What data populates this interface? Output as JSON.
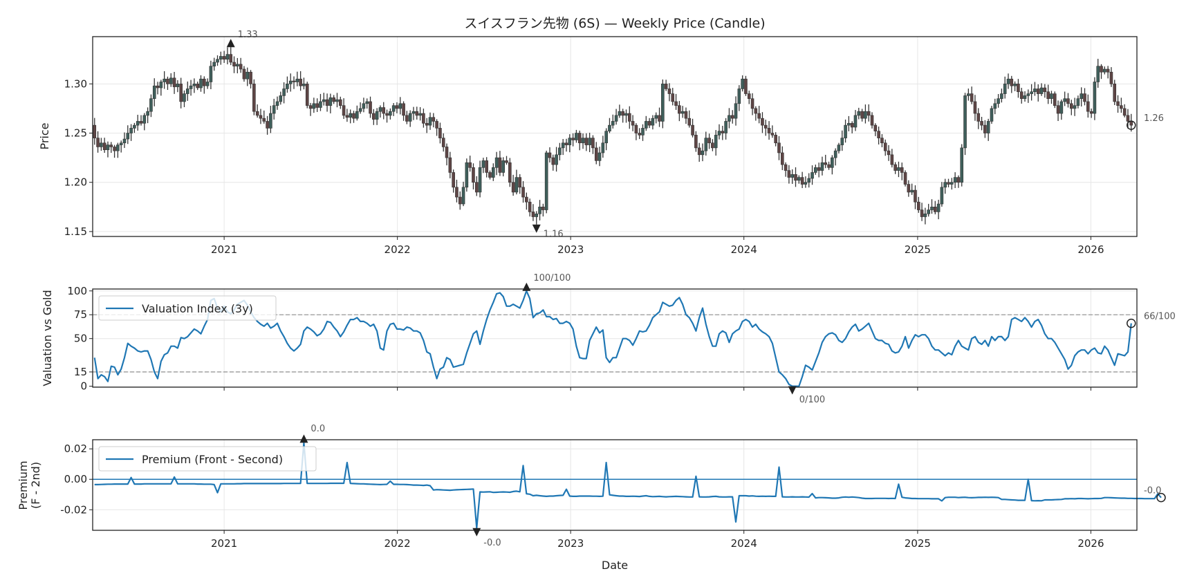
{
  "title": "スイスフラン先物 (6S) — Weekly Price (Candle)",
  "colors": {
    "up": "#3f5f5b",
    "down": "#5e4545",
    "wick": "#333333",
    "line": "#1f77b4",
    "marker": "#222222",
    "ref": "#999999"
  },
  "x_axis": {
    "label": "Date",
    "xlim": [
      "2020-03-30",
      "2026-04-08"
    ],
    "ticks": [
      "2021-01-01",
      "2022-01-01",
      "2023-01-01",
      "2024-01-01",
      "2025-01-01",
      "2026-01-01"
    ],
    "tick_labels": [
      "2021",
      "2022",
      "2023",
      "2024",
      "2025",
      "2026"
    ],
    "dates": {
      "start": "2020-04-03",
      "step_days": 7
    }
  },
  "chart_data": [
    {
      "type": "candlestick",
      "ylabel": "Price",
      "ylim": [
        1.145,
        1.348
      ],
      "yticks": [
        1.15,
        1.2,
        1.25,
        1.3
      ],
      "ytick_labels": [
        "1.15",
        "1.20",
        "1.25",
        "1.30"
      ],
      "grid": true,
      "close": [
        1.245,
        1.236,
        1.24,
        1.233,
        1.238,
        1.236,
        1.232,
        1.238,
        1.24,
        1.244,
        1.25,
        1.255,
        1.258,
        1.262,
        1.26,
        1.268,
        1.272,
        1.285,
        1.298,
        1.296,
        1.302,
        1.305,
        1.3,
        1.306,
        1.297,
        1.3,
        1.282,
        1.29,
        1.295,
        1.298,
        1.3,
        1.296,
        1.305,
        1.298,
        1.302,
        1.318,
        1.322,
        1.325,
        1.328,
        1.325,
        1.33,
        1.322,
        1.318,
        1.32,
        1.315,
        1.305,
        1.312,
        1.3,
        1.272,
        1.268,
        1.265,
        1.262,
        1.255,
        1.27,
        1.278,
        1.282,
        1.288,
        1.295,
        1.3,
        1.303,
        1.302,
        1.305,
        1.298,
        1.3,
        1.278,
        1.275,
        1.28,
        1.276,
        1.282,
        1.284,
        1.278,
        1.286,
        1.282,
        1.284,
        1.278,
        1.268,
        1.266,
        1.27,
        1.265,
        1.272,
        1.275,
        1.28,
        1.282,
        1.27,
        1.264,
        1.272,
        1.276,
        1.27,
        1.268,
        1.272,
        1.278,
        1.275,
        1.28,
        1.268,
        1.262,
        1.27,
        1.272,
        1.268,
        1.27,
        1.26,
        1.258,
        1.266,
        1.262,
        1.255,
        1.245,
        1.236,
        1.225,
        1.21,
        1.195,
        1.185,
        1.178,
        1.195,
        1.22,
        1.215,
        1.2,
        1.19,
        1.215,
        1.222,
        1.21,
        1.205,
        1.215,
        1.225,
        1.21,
        1.222,
        1.22,
        1.2,
        1.19,
        1.205,
        1.195,
        1.185,
        1.18,
        1.17,
        1.165,
        1.168,
        1.175,
        1.172,
        1.23,
        1.225,
        1.218,
        1.228,
        1.235,
        1.24,
        1.238,
        1.245,
        1.243,
        1.25,
        1.24,
        1.245,
        1.238,
        1.245,
        1.235,
        1.222,
        1.23,
        1.24,
        1.252,
        1.258,
        1.262,
        1.268,
        1.272,
        1.268,
        1.27,
        1.262,
        1.258,
        1.25,
        1.248,
        1.255,
        1.262,
        1.258,
        1.265,
        1.268,
        1.262,
        1.3,
        1.295,
        1.29,
        1.282,
        1.278,
        1.27,
        1.272,
        1.265,
        1.258,
        1.248,
        1.235,
        1.228,
        1.232,
        1.245,
        1.24,
        1.235,
        1.248,
        1.252,
        1.25,
        1.262,
        1.268,
        1.265,
        1.28,
        1.295,
        1.305,
        1.29,
        1.285,
        1.275,
        1.27,
        1.265,
        1.258,
        1.255,
        1.25,
        1.248,
        1.24,
        1.23,
        1.218,
        1.212,
        1.205,
        1.208,
        1.202,
        1.205,
        1.198,
        1.2,
        1.204,
        1.21,
        1.215,
        1.212,
        1.22,
        1.218,
        1.215,
        1.225,
        1.232,
        1.238,
        1.245,
        1.258,
        1.26,
        1.256,
        1.268,
        1.272,
        1.265,
        1.272,
        1.268,
        1.258,
        1.252,
        1.245,
        1.24,
        1.232,
        1.228,
        1.218,
        1.212,
        1.215,
        1.21,
        1.198,
        1.19,
        1.192,
        1.18,
        1.172,
        1.165,
        1.168,
        1.172,
        1.175,
        1.17,
        1.178,
        1.195,
        1.2,
        1.198,
        1.2,
        1.205,
        1.2,
        1.235,
        1.288,
        1.29,
        1.282,
        1.27,
        1.262,
        1.258,
        1.25,
        1.262,
        1.275,
        1.28,
        1.285,
        1.29,
        1.3,
        1.305,
        1.298,
        1.3,
        1.292,
        1.285,
        1.288,
        1.29,
        1.292,
        1.295,
        1.29,
        1.296,
        1.292,
        1.285,
        1.29,
        1.278,
        1.27,
        1.282,
        1.285,
        1.28,
        1.275,
        1.278,
        1.285,
        1.29,
        1.282,
        1.272,
        1.27,
        1.302,
        1.318,
        1.312,
        1.315,
        1.312,
        1.3,
        1.282,
        1.278,
        1.275,
        1.268,
        1.262,
        1.258
      ],
      "annotations": {
        "max_label": "1.33",
        "min_label": "1.16",
        "last_label": "1.26"
      }
    },
    {
      "type": "line",
      "ylabel": "Valuation vs Gold",
      "ylim": [
        -1,
        102
      ],
      "yticks": [
        0,
        15,
        50,
        75,
        100
      ],
      "ytick_labels": [
        "0",
        "15",
        "50",
        "75",
        "100"
      ],
      "reference_lines": [
        75,
        15
      ],
      "grid": true,
      "legend": "upper-left",
      "series": [
        {
          "name": "Valuation Index (3y)",
          "values": [
            30,
            8,
            12,
            10,
            5,
            21,
            20,
            12,
            18,
            30,
            45,
            42,
            40,
            37,
            36,
            37,
            37,
            28,
            15,
            8,
            26,
            33,
            35,
            42,
            42,
            40,
            51,
            50,
            52,
            56,
            60,
            58,
            55,
            63,
            70,
            90,
            92,
            82,
            78,
            84,
            78,
            76,
            80,
            86,
            88,
            90,
            85,
            78,
            72,
            68,
            65,
            63,
            66,
            61,
            63,
            66,
            58,
            52,
            45,
            40,
            37,
            40,
            44,
            58,
            62,
            60,
            57,
            53,
            55,
            60,
            68,
            67,
            62,
            58,
            52,
            57,
            64,
            70,
            70,
            72,
            68,
            68,
            66,
            63,
            65,
            58,
            40,
            38,
            58,
            65,
            66,
            60,
            60,
            59,
            62,
            61,
            58,
            58,
            56,
            48,
            36,
            34,
            20,
            8,
            18,
            20,
            30,
            28,
            20,
            21,
            22,
            23,
            35,
            45,
            55,
            58,
            44,
            58,
            70,
            80,
            88,
            97,
            98,
            94,
            84,
            84,
            86,
            84,
            82,
            90,
            100,
            92,
            72,
            76,
            77,
            80,
            73,
            73,
            70,
            71,
            66,
            66,
            68,
            66,
            60,
            42,
            30,
            29,
            29,
            48,
            55,
            62,
            56,
            59,
            30,
            25,
            30,
            30,
            40,
            50,
            50,
            48,
            43,
            50,
            58,
            57,
            58,
            64,
            72,
            75,
            78,
            88,
            86,
            84,
            85,
            90,
            93,
            86,
            75,
            72,
            66,
            58,
            72,
            82,
            65,
            52,
            42,
            42,
            55,
            58,
            56,
            46,
            55,
            58,
            60,
            68,
            70,
            68,
            62,
            65,
            60,
            57,
            55,
            52,
            45,
            30,
            15,
            12,
            8,
            2,
            0,
            0,
            0,
            10,
            22,
            20,
            17,
            26,
            35,
            46,
            52,
            55,
            56,
            54,
            48,
            46,
            50,
            57,
            62,
            65,
            58,
            60,
            63,
            66,
            58,
            50,
            48,
            48,
            45,
            44,
            37,
            35,
            36,
            42,
            52,
            40,
            48,
            54,
            52,
            54,
            54,
            50,
            42,
            38,
            38,
            35,
            32,
            35,
            33,
            42,
            48,
            42,
            40,
            38,
            50,
            52,
            46,
            44,
            48,
            42,
            52,
            48,
            52,
            52,
            48,
            52,
            70,
            72,
            70,
            68,
            72,
            68,
            62,
            68,
            70,
            64,
            55,
            50,
            50,
            46,
            40,
            34,
            28,
            18,
            22,
            32,
            36,
            38,
            38,
            34,
            38,
            40,
            35,
            34,
            42,
            38,
            30,
            22,
            34,
            33,
            32,
            36,
            66
          ]
        }
      ],
      "annotations": {
        "max_label": "100/100",
        "min_label": "0/100",
        "last_label": "66/100"
      }
    },
    {
      "type": "line",
      "ylabel": "Premium\n(F - 2nd)",
      "ylabel_lines": [
        "Premium",
        "(F - 2nd)"
      ],
      "ylim": [
        -0.0335,
        0.026
      ],
      "yticks": [
        -0.02,
        0.0,
        0.02
      ],
      "ytick_labels": [
        "-0.02",
        "0.00",
        "0.02"
      ],
      "reference_lines": [
        0
      ],
      "grid": true,
      "legend": "upper-left",
      "series": [
        {
          "name": "Premium (Front - Second)",
          "values": [
            -0.0035,
            -0.0035,
            -0.0034,
            -0.0033,
            -0.0032,
            -0.0032,
            -0.0031,
            -0.0031,
            -0.0031,
            -0.0031,
            -0.0031,
            0.0012,
            -0.0031,
            -0.0031,
            -0.0031,
            -0.003,
            -0.003,
            -0.003,
            -0.003,
            -0.003,
            -0.003,
            -0.003,
            -0.003,
            -0.003,
            0.0015,
            -0.003,
            -0.003,
            -0.003,
            -0.003,
            -0.003,
            -0.003,
            -0.0031,
            -0.0031,
            -0.0032,
            -0.0032,
            -0.0032,
            -0.0035,
            -0.0088,
            -0.003,
            -0.003,
            -0.003,
            -0.003,
            -0.003,
            -0.0029,
            -0.0029,
            -0.0028,
            -0.0028,
            -0.0028,
            -0.0028,
            -0.0028,
            -0.0028,
            -0.0028,
            -0.0028,
            -0.0028,
            -0.0028,
            -0.0028,
            -0.0028,
            -0.0027,
            -0.0027,
            -0.0027,
            -0.0027,
            -0.0027,
            -0.0027,
            0.024,
            -0.0027,
            -0.0027,
            -0.0027,
            -0.0027,
            -0.0027,
            -0.0027,
            -0.0027,
            -0.0026,
            -0.0026,
            -0.0026,
            -0.0026,
            -0.0026,
            0.011,
            -0.0027,
            -0.0028,
            -0.0029,
            -0.003,
            -0.003,
            -0.0031,
            -0.0032,
            -0.0033,
            -0.0034,
            -0.0035,
            -0.0034,
            -0.0033,
            -0.0012,
            -0.0033,
            -0.0033,
            -0.0034,
            -0.0034,
            -0.0035,
            -0.0036,
            -0.0038,
            -0.0038,
            -0.0039,
            -0.004,
            -0.0038,
            -0.0042,
            -0.007,
            -0.0068,
            -0.0069,
            -0.007,
            -0.0071,
            -0.0072,
            -0.007,
            -0.0069,
            -0.0068,
            -0.0067,
            -0.0066,
            -0.0065,
            -0.0064,
            -0.032,
            -0.0083,
            -0.0084,
            -0.0083,
            -0.0082,
            -0.0086,
            -0.0085,
            -0.0084,
            -0.0083,
            -0.0084,
            -0.0085,
            -0.008,
            -0.0078,
            -0.0082,
            0.009,
            -0.0095,
            -0.0098,
            -0.0108,
            -0.0105,
            -0.0108,
            -0.011,
            -0.0112,
            -0.011,
            -0.011,
            -0.0108,
            -0.0106,
            -0.0105,
            -0.0065,
            -0.011,
            -0.0112,
            -0.0112,
            -0.011,
            -0.011,
            -0.011,
            -0.011,
            -0.0111,
            -0.0111,
            -0.0112,
            -0.0111,
            0.011,
            -0.0102,
            -0.0105,
            -0.0108,
            -0.011,
            -0.011,
            -0.0112,
            -0.0112,
            -0.0111,
            -0.0112,
            -0.0113,
            -0.011,
            -0.0108,
            -0.0112,
            -0.0114,
            -0.0113,
            -0.0112,
            -0.0114,
            -0.0115,
            -0.0114,
            -0.0113,
            -0.0112,
            -0.0113,
            -0.0114,
            -0.0115,
            -0.0116,
            -0.0116,
            0.002,
            -0.0115,
            -0.0116,
            -0.0116,
            -0.0115,
            -0.0113,
            -0.0112,
            -0.0115,
            -0.0116,
            -0.0116,
            -0.0115,
            -0.0115,
            -0.028,
            -0.0108,
            -0.0108,
            -0.0108,
            -0.011,
            -0.0109,
            -0.0111,
            -0.0112,
            -0.0111,
            -0.0112,
            -0.0111,
            -0.0112,
            -0.0112,
            0.008,
            -0.0115,
            -0.0116,
            -0.0116,
            -0.0115,
            -0.0116,
            -0.0116,
            -0.0115,
            -0.0116,
            -0.0117,
            -0.0094,
            -0.0122,
            -0.012,
            -0.012,
            -0.0121,
            -0.0122,
            -0.0124,
            -0.0124,
            -0.0122,
            -0.0118,
            -0.0116,
            -0.0118,
            -0.0116,
            -0.0118,
            -0.012,
            -0.0124,
            -0.0126,
            -0.0126,
            -0.0126,
            -0.0125,
            -0.0125,
            -0.0125,
            -0.0125,
            -0.0126,
            -0.0125,
            -0.0126,
            -0.0032,
            -0.0118,
            -0.0122,
            -0.0124,
            -0.0126,
            -0.0126,
            -0.0127,
            -0.0127,
            -0.0127,
            -0.0127,
            -0.0128,
            -0.0128,
            -0.0128,
            -0.0142,
            -0.012,
            -0.0118,
            -0.0118,
            -0.0118,
            -0.012,
            -0.0119,
            -0.0118,
            -0.012,
            -0.0121,
            -0.012,
            -0.0119,
            -0.0119,
            -0.0118,
            -0.0119,
            -0.0118,
            -0.0119,
            -0.012,
            -0.0132,
            -0.0132,
            -0.0134,
            -0.0135,
            -0.0136,
            -0.0138,
            -0.0138,
            -0.0138,
            0.0,
            -0.014,
            -0.0141,
            -0.014,
            -0.0141,
            -0.0135,
            -0.0135,
            -0.0135,
            -0.0134,
            -0.0133,
            -0.0132,
            -0.0128,
            -0.0128,
            -0.0127,
            -0.0128,
            -0.0126,
            -0.0126,
            -0.0127,
            -0.0128,
            -0.0127,
            -0.0126,
            -0.0126,
            -0.0125,
            -0.012,
            -0.012,
            -0.0121,
            -0.0122,
            -0.0123,
            -0.0124,
            -0.0124,
            -0.0125,
            -0.0125,
            -0.0126,
            -0.0126,
            -0.0126,
            -0.0127,
            -0.0127,
            -0.0127,
            -0.0127,
            -0.0095,
            -0.012
          ]
        }
      ],
      "annotations": {
        "max_label": "0.0",
        "min_label": "-0.0",
        "last_label": "-0.0"
      }
    }
  ]
}
